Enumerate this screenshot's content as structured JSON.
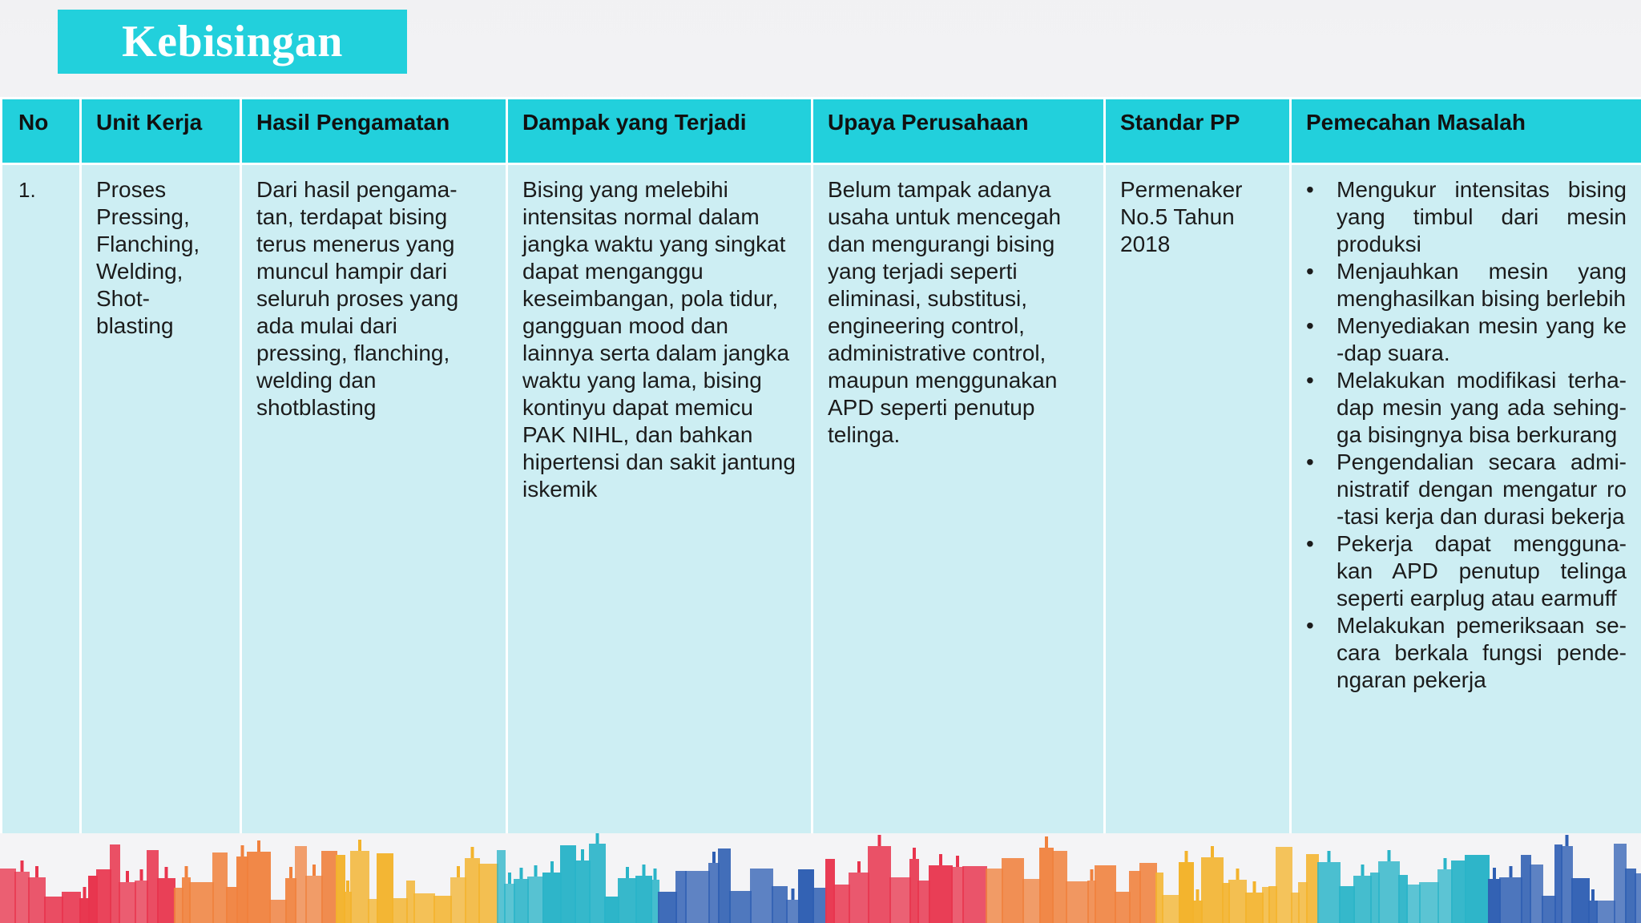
{
  "title": "Kebisingan",
  "table": {
    "headers": [
      "No",
      "Unit Kerja",
      "Hasil Pengamatan",
      "Dampak yang Terjadi",
      "Upaya Perusahaan",
      "Standar PP",
      "Pemecahan Masalah"
    ],
    "row": {
      "no": "1.",
      "unit_kerja": "Proses Pressing, Flanching, Welding, Shot-blasting",
      "hasil_pengamatan": "Dari hasil pengama-tan, terdapat bising terus menerus yang muncul hampir dari seluruh proses yang ada mulai dari pressing, flanching, welding dan shotblasting",
      "dampak": "Bising yang melebihi intensitas normal dalam jangka waktu yang singkat dapat menganggu keseimbangan, pola tidur, gangguan mood dan lainnya serta dalam jangka waktu yang lama, bising kontinyu dapat memicu PAK NIHL, dan bahkan hipertensi dan sakit jantung iskemik",
      "upaya": "Belum tampak adanya usaha untuk mencegah dan mengurangi bising yang terjadi seperti eliminasi, substitusi, engineering control, administrative control, maupun menggunakan APD seperti penutup telinga.",
      "standar": "Permenaker No.5 Tahun 2018",
      "pemecahan": [
        "Mengukur intensitas bising yang timbul dari mesin produksi",
        "Menjauhkan mesin yang menghasilkan bising berlebih",
        "Menyediakan mesin yang ke -dap suara.",
        "Melakukan modifikasi terha-dap mesin yang ada sehing-ga bisingnya bisa berkurang",
        "Pengendalian secara admi-nistratif dengan mengatur ro -tasi kerja dan durasi bekerja",
        "Pekerja dapat mengguna-kan APD penutup telinga seperti earplug atau earmuff",
        "Melakukan pemeriksaan se-cara berkala fungsi pende-ngaran pekerja"
      ]
    }
  },
  "colors": {
    "header_bg": "#22d0dc",
    "cell_bg": "#cdeef3",
    "skyline": [
      "#e8344d",
      "#f0813d",
      "#f3b32c",
      "#2ab4c8",
      "#2f5fb3"
    ]
  }
}
